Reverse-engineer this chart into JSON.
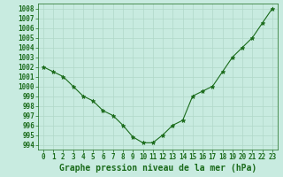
{
  "x": [
    0,
    1,
    2,
    3,
    4,
    5,
    6,
    7,
    8,
    9,
    10,
    11,
    12,
    13,
    14,
    15,
    16,
    17,
    18,
    19,
    20,
    21,
    22,
    23
  ],
  "y": [
    1002,
    1001.5,
    1001,
    1000,
    999,
    998.5,
    997.5,
    997,
    996,
    994.8,
    994.2,
    994.2,
    995,
    996,
    996.5,
    999,
    999.5,
    1000,
    1001.5,
    1003,
    1004,
    1005,
    1006.5,
    1008
  ],
  "line_color": "#1a6b1a",
  "marker": "*",
  "marker_color": "#1a6b1a",
  "bg_color": "#c8ebe0",
  "grid_color": "#b0d8c8",
  "xlabel": "Graphe pression niveau de la mer (hPa)",
  "xlabel_color": "#1a6b1a",
  "tick_color": "#1a6b1a",
  "ylim": [
    993.5,
    1008.5
  ],
  "yticks": [
    994,
    995,
    996,
    997,
    998,
    999,
    1000,
    1001,
    1002,
    1003,
    1004,
    1005,
    1006,
    1007,
    1008
  ],
  "xticks": [
    0,
    1,
    2,
    3,
    4,
    5,
    6,
    7,
    8,
    9,
    10,
    11,
    12,
    13,
    14,
    15,
    16,
    17,
    18,
    19,
    20,
    21,
    22,
    23
  ],
  "tick_fontsize": 5.5,
  "xlabel_fontsize": 7.0,
  "line_width": 0.8,
  "marker_size": 3.5
}
